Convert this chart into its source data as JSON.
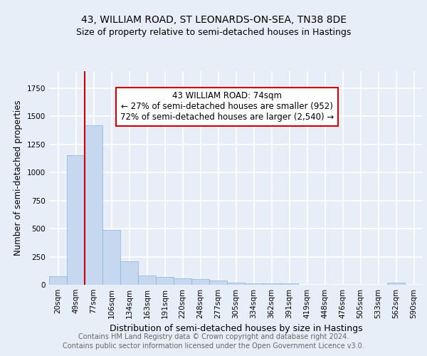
{
  "title": "43, WILLIAM ROAD, ST LEONARDS-ON-SEA, TN38 8DE",
  "subtitle": "Size of property relative to semi-detached houses in Hastings",
  "xlabel": "Distribution of semi-detached houses by size in Hastings",
  "ylabel": "Number of semi-detached properties",
  "footer_line1": "Contains HM Land Registry data © Crown copyright and database right 2024.",
  "footer_line2": "Contains public sector information licensed under the Open Government Licence v3.0.",
  "categories": [
    "20sqm",
    "49sqm",
    "77sqm",
    "106sqm",
    "134sqm",
    "163sqm",
    "191sqm",
    "220sqm",
    "248sqm",
    "277sqm",
    "305sqm",
    "334sqm",
    "362sqm",
    "391sqm",
    "419sqm",
    "448sqm",
    "476sqm",
    "505sqm",
    "533sqm",
    "562sqm",
    "590sqm"
  ],
  "values": [
    75,
    1150,
    1420,
    490,
    210,
    80,
    70,
    55,
    48,
    35,
    20,
    15,
    13,
    12,
    0,
    0,
    0,
    0,
    0,
    17,
    0
  ],
  "bar_color": "#c5d8f0",
  "bar_edge_color": "#8ab4d8",
  "annotation_title": "43 WILLIAM ROAD: 74sqm",
  "annotation_line1": "← 27% of semi-detached houses are smaller (952)",
  "annotation_line2": "72% of semi-detached houses are larger (2,540) →",
  "vline_x_index": 2,
  "vline_color": "#cc0000",
  "annotation_box_color": "white",
  "annotation_box_edge_color": "#cc0000",
  "ylim": [
    0,
    1900
  ],
  "background_color": "#e8eef8",
  "plot_background_color": "#e8eef8",
  "grid_color": "white",
  "title_fontsize": 10,
  "subtitle_fontsize": 9,
  "ylabel_fontsize": 8.5,
  "xlabel_fontsize": 9,
  "tick_fontsize": 7.5,
  "footer_fontsize": 7,
  "annotation_fontsize": 8.5
}
